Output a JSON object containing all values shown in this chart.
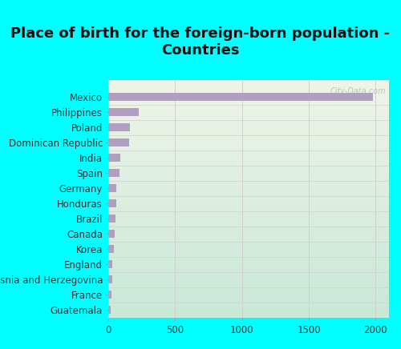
{
  "title": "Place of birth for the foreign-born population -\nCountries",
  "categories": [
    "Mexico",
    "Philippines",
    "Poland",
    "Dominican Republic",
    "India",
    "Spain",
    "Germany",
    "Honduras",
    "Brazil",
    "Canada",
    "Korea",
    "England",
    "Bosnia and Herzegovina",
    "France",
    "Guatemala"
  ],
  "values": [
    1980,
    230,
    160,
    155,
    88,
    82,
    62,
    58,
    52,
    48,
    40,
    32,
    28,
    25,
    20
  ],
  "bar_color": "#b09fc0",
  "background_color": "#00ffff",
  "plot_bg_top_left": "#f0f5e8",
  "plot_bg_bottom_right": "#c8e8d8",
  "xlim": [
    0,
    2100
  ],
  "xticks": [
    0,
    500,
    1000,
    1500,
    2000
  ],
  "title_fontsize": 13,
  "label_fontsize": 8.5,
  "tick_fontsize": 8.5,
  "watermark": "City-Data.com",
  "grid_color": "#d0d0d0"
}
